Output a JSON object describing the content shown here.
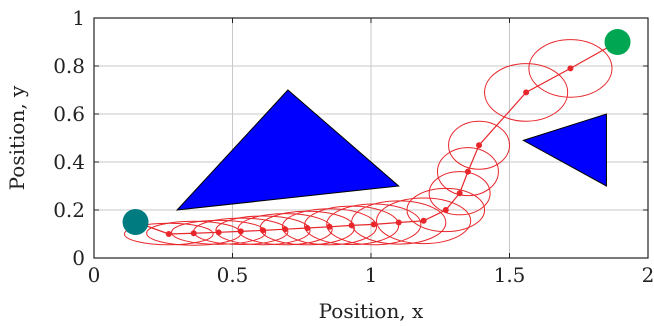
{
  "chart_data": {
    "type": "scatter",
    "title": "",
    "xlabel": "Position, x",
    "ylabel": "Position, y",
    "xlim": [
      0,
      2
    ],
    "ylim": [
      0,
      1
    ],
    "x_ticks": [
      "0",
      "0.5",
      "1",
      "1.5",
      "2"
    ],
    "y_ticks": [
      "0",
      "0.2",
      "0.4",
      "0.6",
      "0.8",
      "1"
    ],
    "grid": true,
    "colors": {
      "trajectory": "#e8262b",
      "obstacle": "#0000ff",
      "start": "#007c80",
      "goal": "#00a651",
      "grid": "#c8c8c8"
    },
    "start": {
      "x": 0.15,
      "y": 0.15
    },
    "goal": {
      "x": 1.89,
      "y": 0.9
    },
    "obstacles": [
      {
        "name": "triangle-1",
        "points": [
          [
            0.3,
            0.2
          ],
          [
            0.7,
            0.7
          ],
          [
            1.1,
            0.3
          ]
        ]
      },
      {
        "name": "triangle-2",
        "points": [
          [
            1.55,
            0.49
          ],
          [
            1.85,
            0.6
          ],
          [
            1.85,
            0.3
          ]
        ]
      }
    ],
    "trajectory": [
      {
        "x": 0.27,
        "y": 0.1,
        "rx": 0.16,
        "ry": 0.045
      },
      {
        "x": 0.36,
        "y": 0.103,
        "rx": 0.17,
        "ry": 0.05
      },
      {
        "x": 0.45,
        "y": 0.107,
        "rx": 0.17,
        "ry": 0.05
      },
      {
        "x": 0.53,
        "y": 0.111,
        "rx": 0.17,
        "ry": 0.055
      },
      {
        "x": 0.61,
        "y": 0.115,
        "rx": 0.17,
        "ry": 0.06
      },
      {
        "x": 0.69,
        "y": 0.12,
        "rx": 0.17,
        "ry": 0.065
      },
      {
        "x": 0.77,
        "y": 0.125,
        "rx": 0.17,
        "ry": 0.07
      },
      {
        "x": 0.85,
        "y": 0.13,
        "rx": 0.17,
        "ry": 0.075
      },
      {
        "x": 0.93,
        "y": 0.136,
        "rx": 0.17,
        "ry": 0.08
      },
      {
        "x": 1.01,
        "y": 0.14,
        "rx": 0.17,
        "ry": 0.085
      },
      {
        "x": 1.1,
        "y": 0.148,
        "rx": 0.17,
        "ry": 0.09
      },
      {
        "x": 1.19,
        "y": 0.155,
        "rx": 0.17,
        "ry": 0.095
      },
      {
        "x": 1.27,
        "y": 0.2,
        "rx": 0.14,
        "ry": 0.09
      },
      {
        "x": 1.32,
        "y": 0.27,
        "rx": 0.11,
        "ry": 0.09
      },
      {
        "x": 1.35,
        "y": 0.36,
        "rx": 0.11,
        "ry": 0.1
      },
      {
        "x": 1.39,
        "y": 0.47,
        "rx": 0.11,
        "ry": 0.1
      },
      {
        "x": 1.56,
        "y": 0.69,
        "rx": 0.15,
        "ry": 0.12
      },
      {
        "x": 1.72,
        "y": 0.79,
        "rx": 0.15,
        "ry": 0.12
      }
    ]
  }
}
